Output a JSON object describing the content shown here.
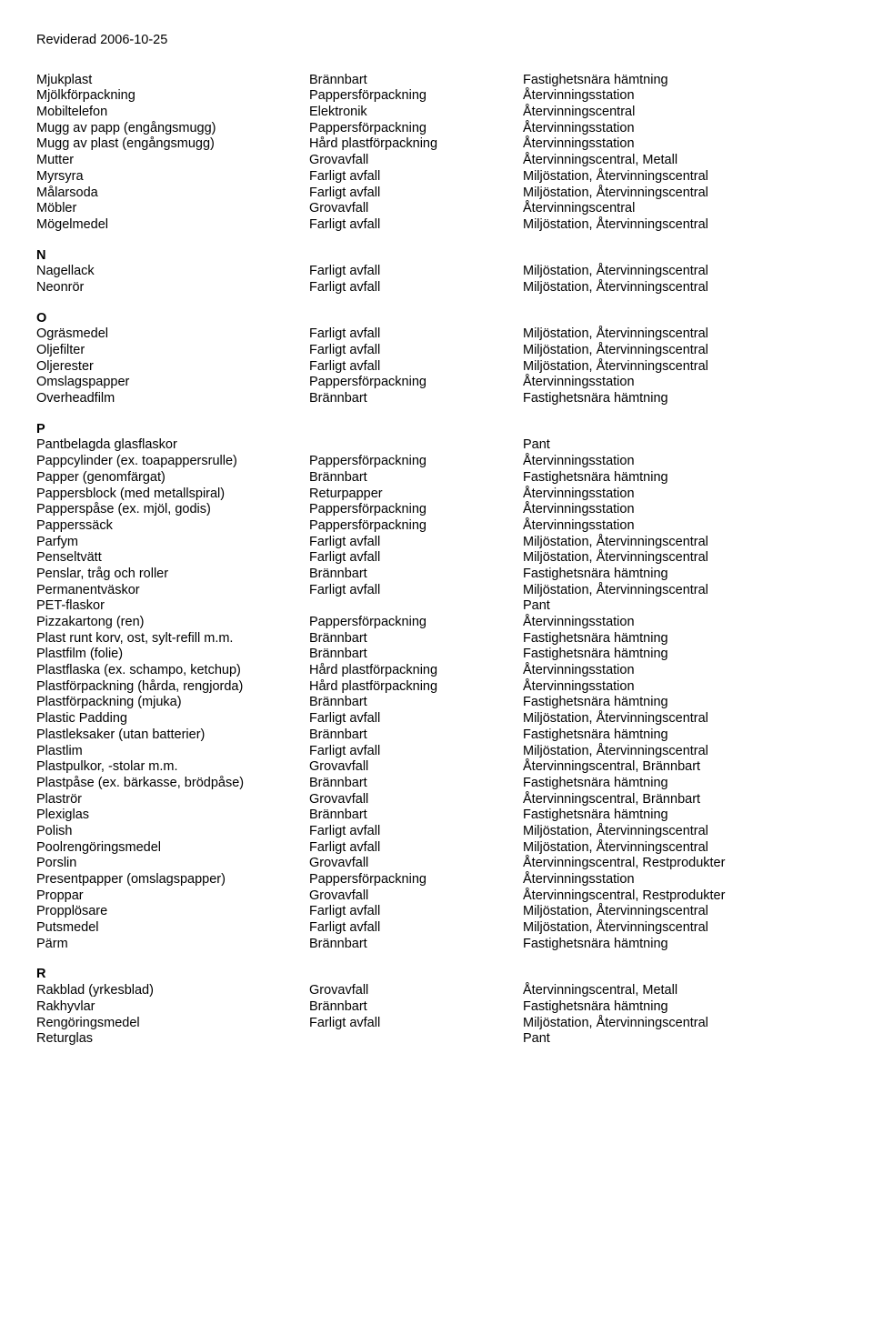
{
  "header": "Reviderad 2006-10-25",
  "columns": {
    "c1_width": 300,
    "c2_width": 235
  },
  "sections": [
    {
      "letter": null,
      "rows": [
        {
          "c1": "Mjukplast",
          "c2": "Brännbart",
          "c3": "Fastighetsnära hämtning"
        },
        {
          "c1": "Mjölkförpackning",
          "c2": "Pappersförpackning",
          "c3": "Återvinningsstation"
        },
        {
          "c1": "Mobiltelefon",
          "c2": "Elektronik",
          "c3": "Återvinningscentral"
        },
        {
          "c1": "Mugg av papp (engångsmugg)",
          "c2": "Pappersförpackning",
          "c3": "Återvinningsstation"
        },
        {
          "c1": "Mugg av plast (engångsmugg)",
          "c2": "Hård plastförpackning",
          "c3": "Återvinningsstation"
        },
        {
          "c1": "Mutter",
          "c2": "Grovavfall",
          "c3": "Återvinningscentral, Metall"
        },
        {
          "c1": "Myrsyra",
          "c2": "Farligt avfall",
          "c3": "Miljöstation, Återvinningscentral"
        },
        {
          "c1": "Målarsoda",
          "c2": "Farligt avfall",
          "c3": "Miljöstation, Återvinningscentral"
        },
        {
          "c1": "Möbler",
          "c2": "Grovavfall",
          "c3": "Återvinningscentral"
        },
        {
          "c1": "Mögelmedel",
          "c2": "Farligt avfall",
          "c3": "Miljöstation, Återvinningscentral"
        }
      ]
    },
    {
      "letter": "N",
      "rows": [
        {
          "c1": "Nagellack",
          "c2": "Farligt avfall",
          "c3": "Miljöstation, Återvinningscentral"
        },
        {
          "c1": "Neonrör",
          "c2": "Farligt avfall",
          "c3": "Miljöstation, Återvinningscentral"
        }
      ]
    },
    {
      "letter": "O",
      "rows": [
        {
          "c1": "Ogräsmedel",
          "c2": "Farligt avfall",
          "c3": "Miljöstation, Återvinningscentral"
        },
        {
          "c1": "Oljefilter",
          "c2": "Farligt avfall",
          "c3": "Miljöstation, Återvinningscentral"
        },
        {
          "c1": "Oljerester",
          "c2": "Farligt avfall",
          "c3": "Miljöstation, Återvinningscentral"
        },
        {
          "c1": "Omslagspapper",
          "c2": "Pappersförpackning",
          "c3": "Återvinningsstation"
        },
        {
          "c1": "Overheadfilm",
          "c2": "Brännbart",
          "c3": "Fastighetsnära hämtning"
        }
      ]
    },
    {
      "letter": "P",
      "rows": [
        {
          "c1": "Pantbelagda glasflaskor",
          "c2": "",
          "c3": "Pant"
        },
        {
          "c1": "Pappcylinder (ex. toapappersrulle)",
          "c2": "Pappersförpackning",
          "c3": "Återvinningsstation"
        },
        {
          "c1": "Papper (genomfärgat)",
          "c2": "Brännbart",
          "c3": "Fastighetsnära hämtning"
        },
        {
          "c1": "Pappersblock (med metallspiral)",
          "c2": "Returpapper",
          "c3": "Återvinningsstation"
        },
        {
          "c1": "Papperspåse (ex. mjöl, godis)",
          "c2": "Pappersförpackning",
          "c3": "Återvinningsstation"
        },
        {
          "c1": "Papperssäck",
          "c2": "Pappersförpackning",
          "c3": "Återvinningsstation"
        },
        {
          "c1": "Parfym",
          "c2": "Farligt avfall",
          "c3": "Miljöstation, Återvinningscentral"
        },
        {
          "c1": "Penseltvätt",
          "c2": "Farligt avfall",
          "c3": "Miljöstation, Återvinningscentral"
        },
        {
          "c1": "Penslar, tråg och roller",
          "c2": "Brännbart",
          "c3": "Fastighetsnära hämtning"
        },
        {
          "c1": "Permanentväskor",
          "c2": "Farligt avfall",
          "c3": "Miljöstation, Återvinningscentral"
        },
        {
          "c1": "PET-flaskor",
          "c2": "",
          "c3": "Pant"
        },
        {
          "c1": "Pizzakartong (ren)",
          "c2": "Pappersförpackning",
          "c3": "Återvinningsstation"
        },
        {
          "c1": "Plast runt korv, ost, sylt-refill m.m.",
          "c2": "Brännbart",
          "c3": "Fastighetsnära hämtning"
        },
        {
          "c1": "Plastfilm (folie)",
          "c2": "Brännbart",
          "c3": "Fastighetsnära hämtning"
        },
        {
          "c1": "Plastflaska (ex. schampo, ketchup)",
          "c2": "Hård plastförpackning",
          "c3": "Återvinningsstation"
        },
        {
          "c1": "Plastförpackning (hårda, rengjorda)",
          "c2": "Hård plastförpackning",
          "c3": "Återvinningsstation"
        },
        {
          "c1": "Plastförpackning (mjuka)",
          "c2": "Brännbart",
          "c3": "Fastighetsnära hämtning"
        },
        {
          "c1": "Plastic Padding",
          "c2": "Farligt avfall",
          "c3": "Miljöstation, Återvinningscentral"
        },
        {
          "c1": "Plastleksaker (utan batterier)",
          "c2": "Brännbart",
          "c3": "Fastighetsnära hämtning"
        },
        {
          "c1": "Plastlim",
          "c2": "Farligt avfall",
          "c3": "Miljöstation, Återvinningscentral"
        },
        {
          "c1": "Plastpulkor, -stolar m.m.",
          "c2": "Grovavfall",
          "c3": "Återvinningscentral, Brännbart"
        },
        {
          "c1": "Plastpåse (ex. bärkasse, brödpåse)",
          "c2": "Brännbart",
          "c3": "Fastighetsnära hämtning"
        },
        {
          "c1": "Plaströr",
          "c2": "Grovavfall",
          "c3": "Återvinningscentral, Brännbart"
        },
        {
          "c1": "Plexiglas",
          "c2": "Brännbart",
          "c3": "Fastighetsnära hämtning"
        },
        {
          "c1": "Polish",
          "c2": "Farligt avfall",
          "c3": "Miljöstation, Återvinningscentral"
        },
        {
          "c1": "Poolrengöringsmedel",
          "c2": "Farligt avfall",
          "c3": "Miljöstation, Återvinningscentral"
        },
        {
          "c1": "Porslin",
          "c2": "Grovavfall",
          "c3": "Återvinningscentral, Restprodukter"
        },
        {
          "c1": "Presentpapper (omslagspapper)",
          "c2": "Pappersförpackning",
          "c3": "Återvinningsstation"
        },
        {
          "c1": "Proppar",
          "c2": "Grovavfall",
          "c3": "Återvinningscentral, Restprodukter"
        },
        {
          "c1": "Propplösare",
          "c2": "Farligt avfall",
          "c3": "Miljöstation, Återvinningscentral"
        },
        {
          "c1": "Putsmedel",
          "c2": "Farligt avfall",
          "c3": "Miljöstation, Återvinningscentral"
        },
        {
          "c1": "Pärm",
          "c2": "Brännbart",
          "c3": "Fastighetsnära hämtning"
        }
      ]
    },
    {
      "letter": "R",
      "rows": [
        {
          "c1": "Rakblad (yrkesblad)",
          "c2": "Grovavfall",
          "c3": "Återvinningscentral, Metall"
        },
        {
          "c1": "Rakhyvlar",
          "c2": "Brännbart",
          "c3": "Fastighetsnära hämtning"
        },
        {
          "c1": "Rengöringsmedel",
          "c2": "Farligt avfall",
          "c3": "Miljöstation, Återvinningscentral"
        },
        {
          "c1": "Returglas",
          "c2": "",
          "c3": "Pant"
        }
      ]
    }
  ]
}
